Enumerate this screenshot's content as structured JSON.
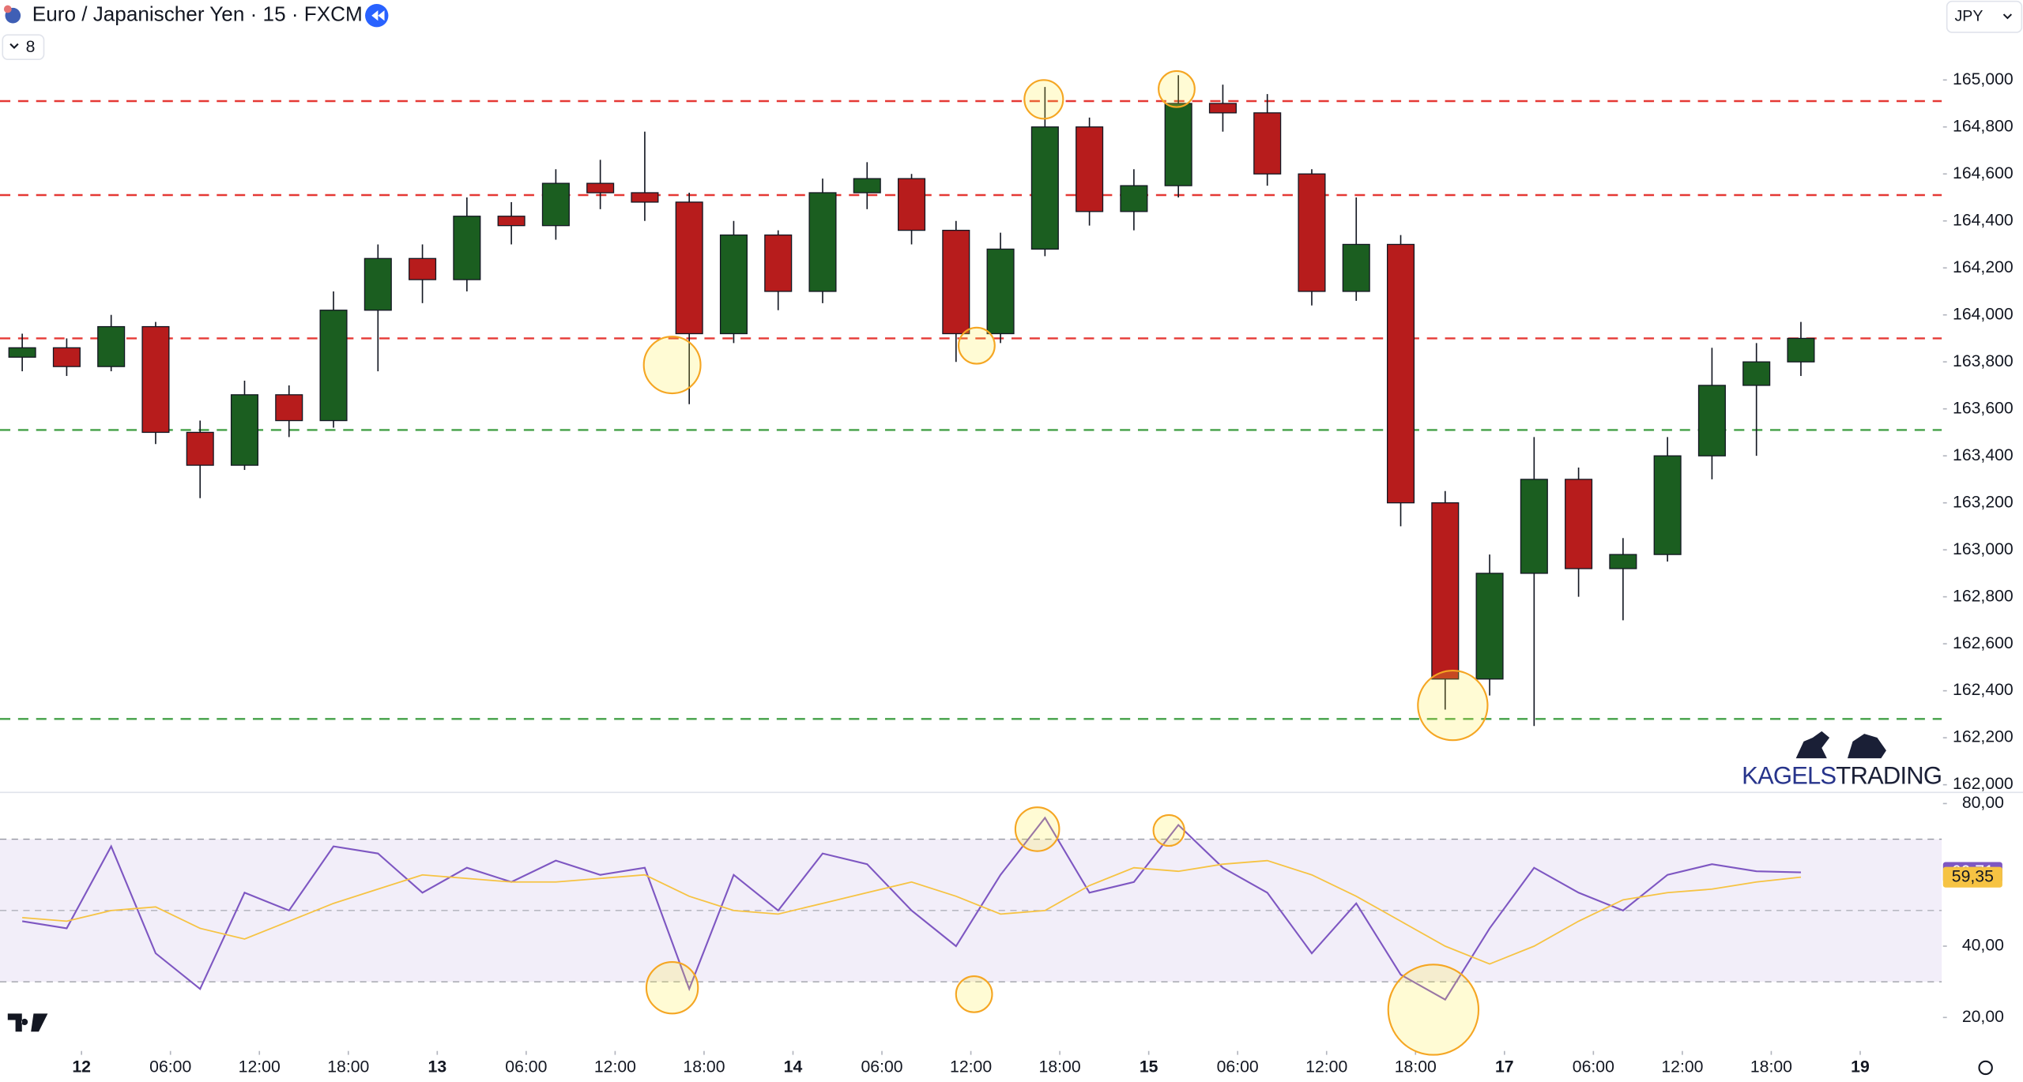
{
  "header": {
    "title": "Euro / Japanischer Yen · 15 · FXCM",
    "indicator_count": "8",
    "currency": "JPY"
  },
  "watermark": {
    "brand": "KAGELS",
    "brand2": "TRADING"
  },
  "chart_data": [
    {
      "type": "candlestick",
      "x": [
        -4,
        -1,
        2,
        5,
        8,
        11,
        14,
        17,
        20,
        23,
        26,
        29,
        32,
        35,
        38,
        41,
        44,
        47,
        50,
        53,
        56,
        59,
        62,
        65,
        68,
        71,
        74,
        77,
        80,
        83,
        86,
        89,
        92,
        95,
        98,
        101,
        104,
        107,
        110,
        113,
        116
      ],
      "open": [
        163.82,
        163.86,
        163.78,
        163.95,
        163.5,
        163.36,
        163.66,
        163.55,
        164.02,
        164.24,
        164.15,
        164.42,
        164.38,
        164.56,
        164.52,
        164.48,
        163.92,
        164.34,
        164.1,
        164.52,
        164.58,
        164.36,
        163.92,
        164.28,
        164.8,
        164.44,
        164.55,
        164.9,
        164.86,
        164.6,
        164.1,
        164.3,
        163.2,
        162.45,
        162.9,
        163.3,
        162.92,
        162.98,
        163.4,
        163.7,
        163.8
      ],
      "high": [
        163.92,
        163.9,
        164.0,
        163.97,
        163.55,
        163.72,
        163.7,
        164.1,
        164.3,
        164.3,
        164.5,
        164.48,
        164.62,
        164.66,
        164.78,
        164.52,
        164.4,
        164.36,
        164.58,
        164.65,
        164.6,
        164.4,
        164.35,
        164.97,
        164.84,
        164.62,
        165.02,
        164.98,
        164.94,
        164.62,
        164.5,
        164.34,
        163.25,
        162.98,
        163.48,
        163.35,
        163.05,
        163.48,
        163.86,
        163.88,
        163.97
      ],
      "low": [
        163.76,
        163.74,
        163.76,
        163.45,
        163.22,
        163.34,
        163.48,
        163.52,
        163.76,
        164.05,
        164.1,
        164.3,
        164.32,
        164.45,
        164.4,
        163.62,
        163.88,
        164.02,
        164.05,
        164.45,
        164.3,
        163.8,
        163.88,
        164.25,
        164.38,
        164.36,
        164.5,
        164.78,
        164.55,
        164.04,
        164.06,
        163.1,
        162.32,
        162.38,
        162.25,
        162.8,
        162.7,
        162.95,
        163.3,
        163.4,
        163.74
      ],
      "close": [
        163.86,
        163.78,
        163.95,
        163.5,
        163.36,
        163.66,
        163.55,
        164.02,
        164.24,
        164.15,
        164.42,
        164.38,
        164.56,
        164.52,
        164.48,
        163.92,
        164.34,
        164.1,
        164.52,
        164.58,
        164.36,
        163.92,
        164.28,
        164.8,
        164.44,
        164.55,
        164.9,
        164.86,
        164.6,
        164.1,
        164.3,
        163.2,
        162.45,
        162.9,
        163.3,
        162.92,
        162.98,
        163.4,
        163.7,
        163.8,
        163.9
      ],
      "up_color": "#1b5e20",
      "down_color": "#b71c1c",
      "levels": [
        {
          "value": 164.91,
          "color": "#e53935"
        },
        {
          "value": 164.51,
          "color": "#e53935"
        },
        {
          "value": 163.9,
          "color": "#e53935"
        },
        {
          "value": 163.51,
          "color": "#43a047"
        },
        {
          "value": 162.28,
          "color": "#43a047"
        }
      ],
      "xlim": [
        -5.5,
        125.5
      ],
      "ylim": [
        161.97,
        165.34
      ],
      "yticks": [
        {
          "value": 162.0,
          "label": "162,000"
        },
        {
          "value": 162.2,
          "label": "162,200"
        },
        {
          "value": 162.4,
          "label": "162,400"
        },
        {
          "value": 162.6,
          "label": "162,600"
        },
        {
          "value": 162.8,
          "label": "162,800"
        },
        {
          "value": 163.0,
          "label": "163,000"
        },
        {
          "value": 163.2,
          "label": "163,200"
        },
        {
          "value": 163.4,
          "label": "163,400"
        },
        {
          "value": 163.6,
          "label": "163,600"
        },
        {
          "value": 163.8,
          "label": "163,800"
        },
        {
          "value": 164.0,
          "label": "164,000"
        },
        {
          "value": 164.2,
          "label": "164,200"
        },
        {
          "value": 164.4,
          "label": "164,400"
        },
        {
          "value": 164.6,
          "label": "164,600"
        },
        {
          "value": 164.8,
          "label": "164,800"
        },
        {
          "value": 165.0,
          "label": "165,000"
        }
      ],
      "grid": false
    },
    {
      "type": "line",
      "x": [
        -4,
        -1,
        2,
        5,
        8,
        11,
        14,
        17,
        20,
        23,
        26,
        29,
        32,
        35,
        38,
        41,
        44,
        47,
        50,
        53,
        56,
        59,
        62,
        65,
        68,
        71,
        74,
        77,
        80,
        83,
        86,
        89,
        92,
        95,
        98,
        101,
        104,
        107,
        110,
        113,
        116
      ],
      "series": [
        {
          "color": "#7e57c2",
          "values": [
            47,
            45,
            68,
            38,
            28,
            55,
            50,
            68,
            66,
            55,
            62,
            58,
            64,
            60,
            62,
            28,
            60,
            50,
            66,
            63,
            50,
            40,
            60,
            76,
            55,
            58,
            74,
            62,
            55,
            38,
            52,
            32,
            25,
            45,
            62,
            55,
            50,
            60,
            63,
            61,
            60.71
          ],
          "value_labels": [
            null,
            null,
            null,
            null,
            null,
            null,
            null,
            null,
            null,
            null,
            null,
            null,
            null,
            null,
            null,
            null,
            null,
            null,
            null,
            null,
            null,
            null,
            null,
            null,
            null,
            null,
            null,
            null,
            null,
            null,
            null,
            null,
            null,
            null,
            null,
            null,
            null,
            null,
            null,
            null,
            "60,71"
          ]
        },
        {
          "color": "#f6c343",
          "values": [
            48,
            47,
            50,
            51,
            45,
            42,
            47,
            52,
            56,
            60,
            59,
            58,
            58,
            59,
            60,
            54,
            50,
            49,
            52,
            55,
            58,
            54,
            49,
            50,
            57,
            62,
            61,
            63,
            64,
            60,
            54,
            47,
            40,
            35,
            40,
            47,
            53,
            55,
            56,
            58,
            59.35
          ],
          "value_labels": [
            null,
            null,
            null,
            null,
            null,
            null,
            null,
            null,
            null,
            null,
            null,
            null,
            null,
            null,
            null,
            null,
            null,
            null,
            null,
            null,
            null,
            null,
            null,
            null,
            null,
            null,
            null,
            null,
            null,
            null,
            null,
            null,
            null,
            null,
            null,
            null,
            null,
            null,
            null,
            null,
            "59,35"
          ]
        }
      ],
      "band": [
        30,
        70
      ],
      "midline": 50,
      "xlim": [
        -5.5,
        125.5
      ],
      "ylim": [
        10.6,
        83.3
      ],
      "yticks": [
        {
          "value": 20,
          "label": "20,00"
        },
        {
          "value": 40,
          "label": "40,00"
        },
        {
          "value": 80,
          "label": "80,00"
        }
      ],
      "xticks": [
        {
          "value": 0,
          "label": "12"
        },
        {
          "value": 6,
          "label": "06:00"
        },
        {
          "value": 12,
          "label": "12:00"
        },
        {
          "value": 18,
          "label": "18:00"
        },
        {
          "value": 24,
          "label": "13"
        },
        {
          "value": 30,
          "label": "06:00"
        },
        {
          "value": 36,
          "label": "12:00"
        },
        {
          "value": 42,
          "label": "18:00"
        },
        {
          "value": 48,
          "label": "14"
        },
        {
          "value": 54,
          "label": "06:00"
        },
        {
          "value": 60,
          "label": "12:00"
        },
        {
          "value": 66,
          "label": "18:00"
        },
        {
          "value": 72,
          "label": "15"
        },
        {
          "value": 78,
          "label": "06:00"
        },
        {
          "value": 84,
          "label": "12:00"
        },
        {
          "value": 90,
          "label": "18:00"
        },
        {
          "value": 96,
          "label": "17"
        },
        {
          "value": 102,
          "label": "06:00"
        },
        {
          "value": 108,
          "label": "12:00"
        },
        {
          "value": 114,
          "label": "18:00"
        },
        {
          "value": 120,
          "label": "19"
        }
      ]
    }
  ]
}
